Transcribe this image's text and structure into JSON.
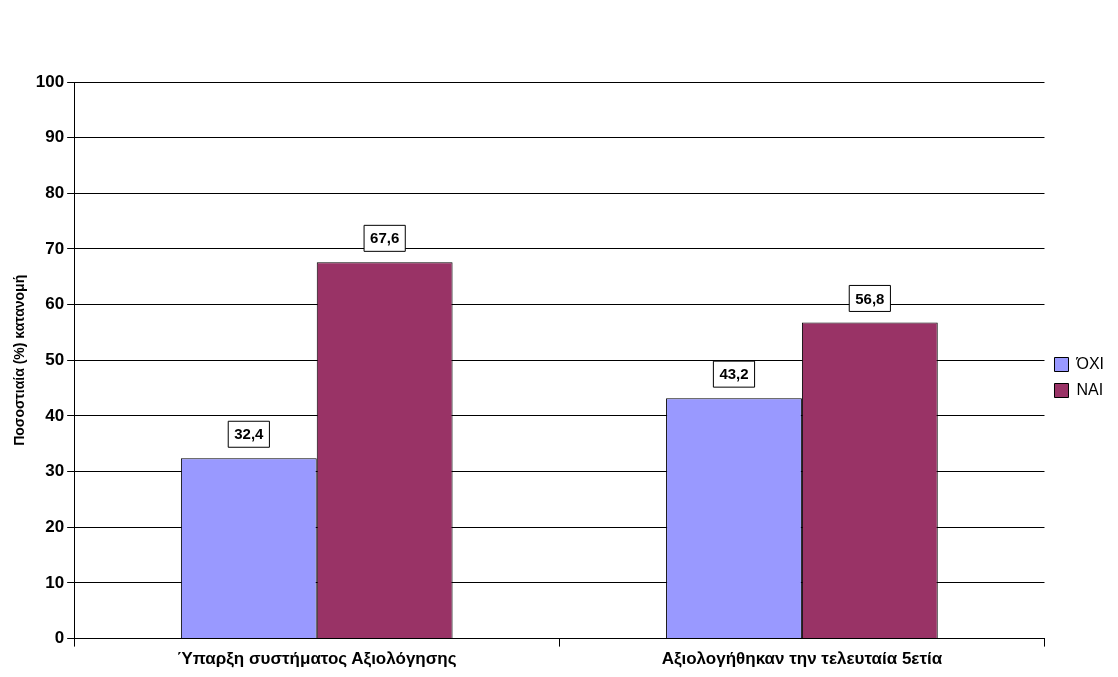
{
  "chart_data": {
    "type": "bar",
    "ylabel": "Ποσοστιαία (%) κατανομή",
    "categories": [
      "Ύπαρξη συστήματος Αξιολόγησης",
      "Αξιολογήθηκαν την τελευταία 5ετία"
    ],
    "series": [
      {
        "name": "ΌΧΙ",
        "color": "#9999ff",
        "values": [
          32.4,
          43.2
        ],
        "value_labels": [
          "32,4",
          "43,2"
        ]
      },
      {
        "name": "ΝΑΙ",
        "color": "#993366",
        "values": [
          67.6,
          56.8
        ],
        "value_labels": [
          "67,6",
          "56,8"
        ]
      }
    ],
    "ylim": [
      0,
      100
    ],
    "yticks": [
      0,
      10,
      20,
      30,
      40,
      50,
      60,
      70,
      80,
      90,
      100
    ],
    "grid": "y",
    "legend": "right"
  }
}
